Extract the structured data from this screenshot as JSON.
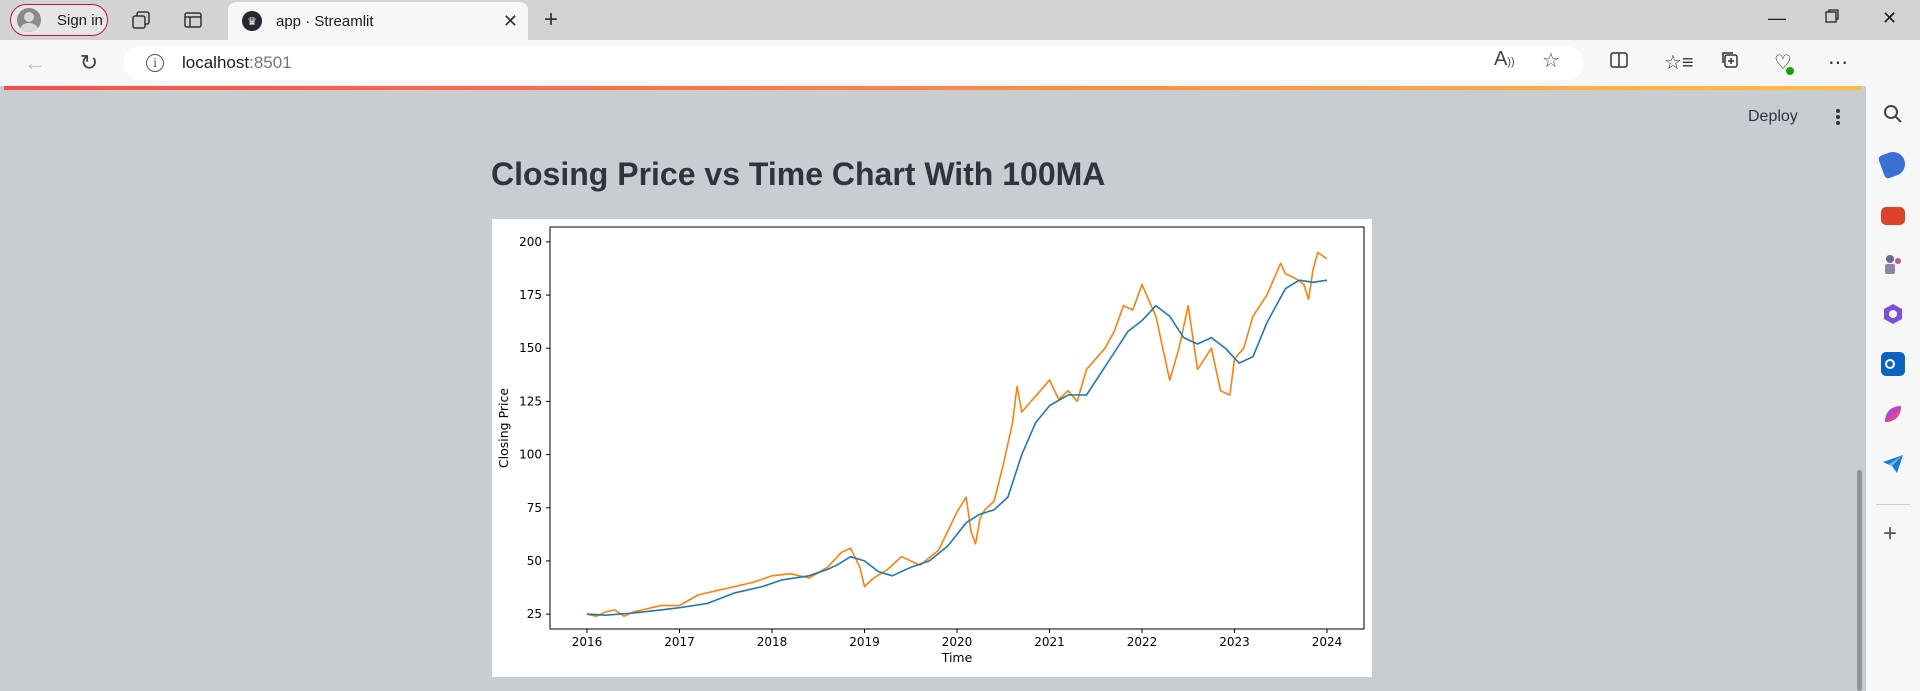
{
  "browser": {
    "signin_label": "Sign in",
    "tab_title": "app · Streamlit",
    "url_host": "localhost",
    "url_port": ":8501"
  },
  "app": {
    "deploy_label": "Deploy",
    "heading": "Closing Price vs Time Chart With 100MA"
  },
  "colors": {
    "accent_gradient_start": "#ff4b4b",
    "accent_gradient_end": "#ffbd45",
    "price_line": "#ff7f0e",
    "ma_line": "#1f77b4"
  },
  "chart_data": {
    "type": "line",
    "title": "",
    "xlabel": "Time",
    "ylabel": "Closing Price",
    "xlim": [
      2015.6,
      2024.4
    ],
    "ylim": [
      18,
      207
    ],
    "xticks": [
      2016,
      2017,
      2018,
      2019,
      2020,
      2021,
      2022,
      2023,
      2024
    ],
    "yticks": [
      25,
      50,
      75,
      100,
      125,
      150,
      175,
      200
    ],
    "grid": false,
    "legend": "none",
    "series": [
      {
        "color": "#ff7f0e",
        "x": [
          2016.0,
          2016.1,
          2016.2,
          2016.3,
          2016.4,
          2016.5,
          2016.6,
          2016.7,
          2016.8,
          2016.9,
          2017.0,
          2017.2,
          2017.4,
          2017.6,
          2017.8,
          2018.0,
          2018.2,
          2018.4,
          2018.6,
          2018.75,
          2018.85,
          2018.95,
          2019.0,
          2019.1,
          2019.25,
          2019.4,
          2019.6,
          2019.8,
          2020.0,
          2020.1,
          2020.15,
          2020.2,
          2020.25,
          2020.3,
          2020.4,
          2020.5,
          2020.6,
          2020.65,
          2020.7,
          2020.8,
          2020.9,
          2021.0,
          2021.1,
          2021.2,
          2021.3,
          2021.4,
          2021.5,
          2021.6,
          2021.7,
          2021.8,
          2021.9,
          2022.0,
          2022.05,
          2022.15,
          2022.3,
          2022.4,
          2022.5,
          2022.6,
          2022.75,
          2022.85,
          2022.95,
          2023.0,
          2023.1,
          2023.2,
          2023.35,
          2023.5,
          2023.55,
          2023.65,
          2023.75,
          2023.8,
          2023.85,
          2023.9,
          2024.0
        ],
        "y": [
          25,
          24,
          26,
          27,
          24,
          26,
          27,
          28,
          29,
          29,
          29,
          34,
          36,
          38,
          40,
          43,
          44,
          42,
          47,
          54,
          56,
          47,
          38,
          42,
          46,
          52,
          48,
          55,
          73,
          80,
          64,
          58,
          70,
          74,
          78,
          95,
          115,
          132,
          120,
          125,
          130,
          135,
          126,
          130,
          125,
          140,
          145,
          150,
          158,
          170,
          168,
          180,
          175,
          165,
          135,
          150,
          170,
          140,
          150,
          130,
          128,
          145,
          150,
          165,
          175,
          190,
          185,
          183,
          180,
          173,
          187,
          195,
          192
        ]
      },
      {
        "color": "#1f77b4",
        "x": [
          2016.0,
          2016.2,
          2016.5,
          2016.8,
          2017.0,
          2017.3,
          2017.6,
          2017.9,
          2018.1,
          2018.4,
          2018.6,
          2018.7,
          2018.85,
          2019.0,
          2019.15,
          2019.3,
          2019.5,
          2019.7,
          2019.9,
          2020.1,
          2020.25,
          2020.4,
          2020.55,
          2020.7,
          2020.85,
          2021.0,
          2021.2,
          2021.4,
          2021.55,
          2021.7,
          2021.85,
          2022.0,
          2022.15,
          2022.3,
          2022.45,
          2022.6,
          2022.75,
          2022.9,
          2023.05,
          2023.2,
          2023.35,
          2023.55,
          2023.7,
          2023.85,
          2024.0
        ],
        "y": [
          25,
          24.5,
          25.5,
          27,
          28,
          30,
          35,
          38,
          41,
          43,
          46,
          48,
          52,
          50,
          45,
          43,
          47,
          50,
          57,
          68,
          72,
          74,
          80,
          100,
          115,
          123,
          128,
          128,
          138,
          148,
          158,
          163,
          170,
          165,
          155,
          152,
          155,
          150,
          143,
          146,
          162,
          178,
          182,
          181,
          182
        ]
      }
    ]
  }
}
